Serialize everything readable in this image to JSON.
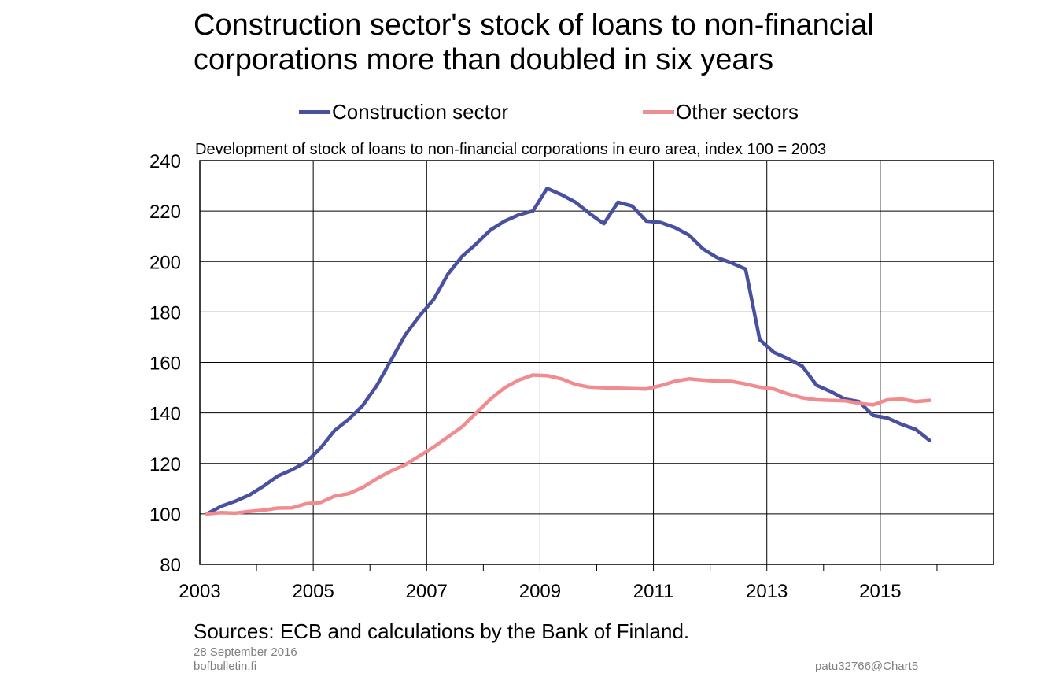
{
  "title": "Construction sector's stock of loans to non-financial corporations more than doubled in six years",
  "subtitle": "Development of stock of loans to non-financial corporations in euro area, index 100 = 2003",
  "footer": {
    "source": "Sources: ECB and calculations by the Bank of Finland.",
    "date": "28 September 2016",
    "site": "bofbulletin.fi",
    "chart_id": "patu32766@Chart5"
  },
  "chart_data": {
    "type": "line",
    "title": "Construction sector's stock of loans to non-financial corporations more than doubled in six years",
    "subtitle": "Development of stock of loans to non-financial corporations in euro area, index 100 = 2003",
    "xlabel": "",
    "ylabel": "",
    "xlim": [
      2003,
      2017
    ],
    "ylim": [
      80,
      240
    ],
    "x_tick_labels": [
      "2003",
      "2005",
      "2007",
      "2009",
      "2011",
      "2013",
      "2015"
    ],
    "y_tick_labels": [
      "80",
      "100",
      "120",
      "140",
      "160",
      "180",
      "200",
      "220",
      "240"
    ],
    "grid": true,
    "legend_position": "top",
    "x": [
      2003.125,
      2003.375,
      2003.625,
      2003.875,
      2004.125,
      2004.375,
      2004.625,
      2004.875,
      2005.125,
      2005.375,
      2005.625,
      2005.875,
      2006.125,
      2006.375,
      2006.625,
      2006.875,
      2007.125,
      2007.375,
      2007.625,
      2007.875,
      2008.125,
      2008.375,
      2008.625,
      2008.875,
      2009.125,
      2009.375,
      2009.625,
      2009.875,
      2010.125,
      2010.375,
      2010.625,
      2010.875,
      2011.125,
      2011.375,
      2011.625,
      2011.875,
      2012.125,
      2012.375,
      2012.625,
      2012.875,
      2013.125,
      2013.375,
      2013.625,
      2013.875,
      2014.125,
      2014.375,
      2014.625,
      2014.875,
      2015.125,
      2015.375,
      2015.625,
      2015.875
    ],
    "series": [
      {
        "name": "Construction sector",
        "color": "#4a50a0",
        "values": [
          100,
          103,
          105,
          107.5,
          111,
          115,
          117.5,
          120.5,
          126,
          133,
          137.5,
          143,
          151,
          161,
          171,
          178.5,
          185,
          195,
          202,
          207,
          212.5,
          216,
          218.5,
          220,
          229,
          226.5,
          223.5,
          219,
          215,
          223.5,
          222,
          216,
          215.5,
          213.5,
          210.5,
          205,
          201.5,
          199.5,
          197,
          169,
          164,
          161.5,
          158.5,
          151,
          148.5,
          145.5,
          144.5,
          139,
          138,
          135.5,
          133.5,
          129
        ]
      },
      {
        "name": "Other sectors",
        "color": "#f08c90",
        "values": [
          100,
          100.5,
          100.3,
          101,
          101.5,
          102.3,
          102.4,
          104,
          104.5,
          107,
          108,
          110.5,
          114,
          117,
          119.5,
          123,
          126.5,
          130.5,
          134.5,
          140,
          145.5,
          150,
          153,
          155,
          154.8,
          153.5,
          151.3,
          150.2,
          150,
          149.8,
          149.6,
          149.5,
          150.8,
          152.5,
          153.5,
          153,
          152.6,
          152.5,
          151.5,
          150.2,
          149.5,
          147.5,
          146,
          145.2,
          145,
          144.8,
          143.8,
          143.2,
          145.2,
          145.5,
          144.5,
          145
        ]
      }
    ]
  }
}
